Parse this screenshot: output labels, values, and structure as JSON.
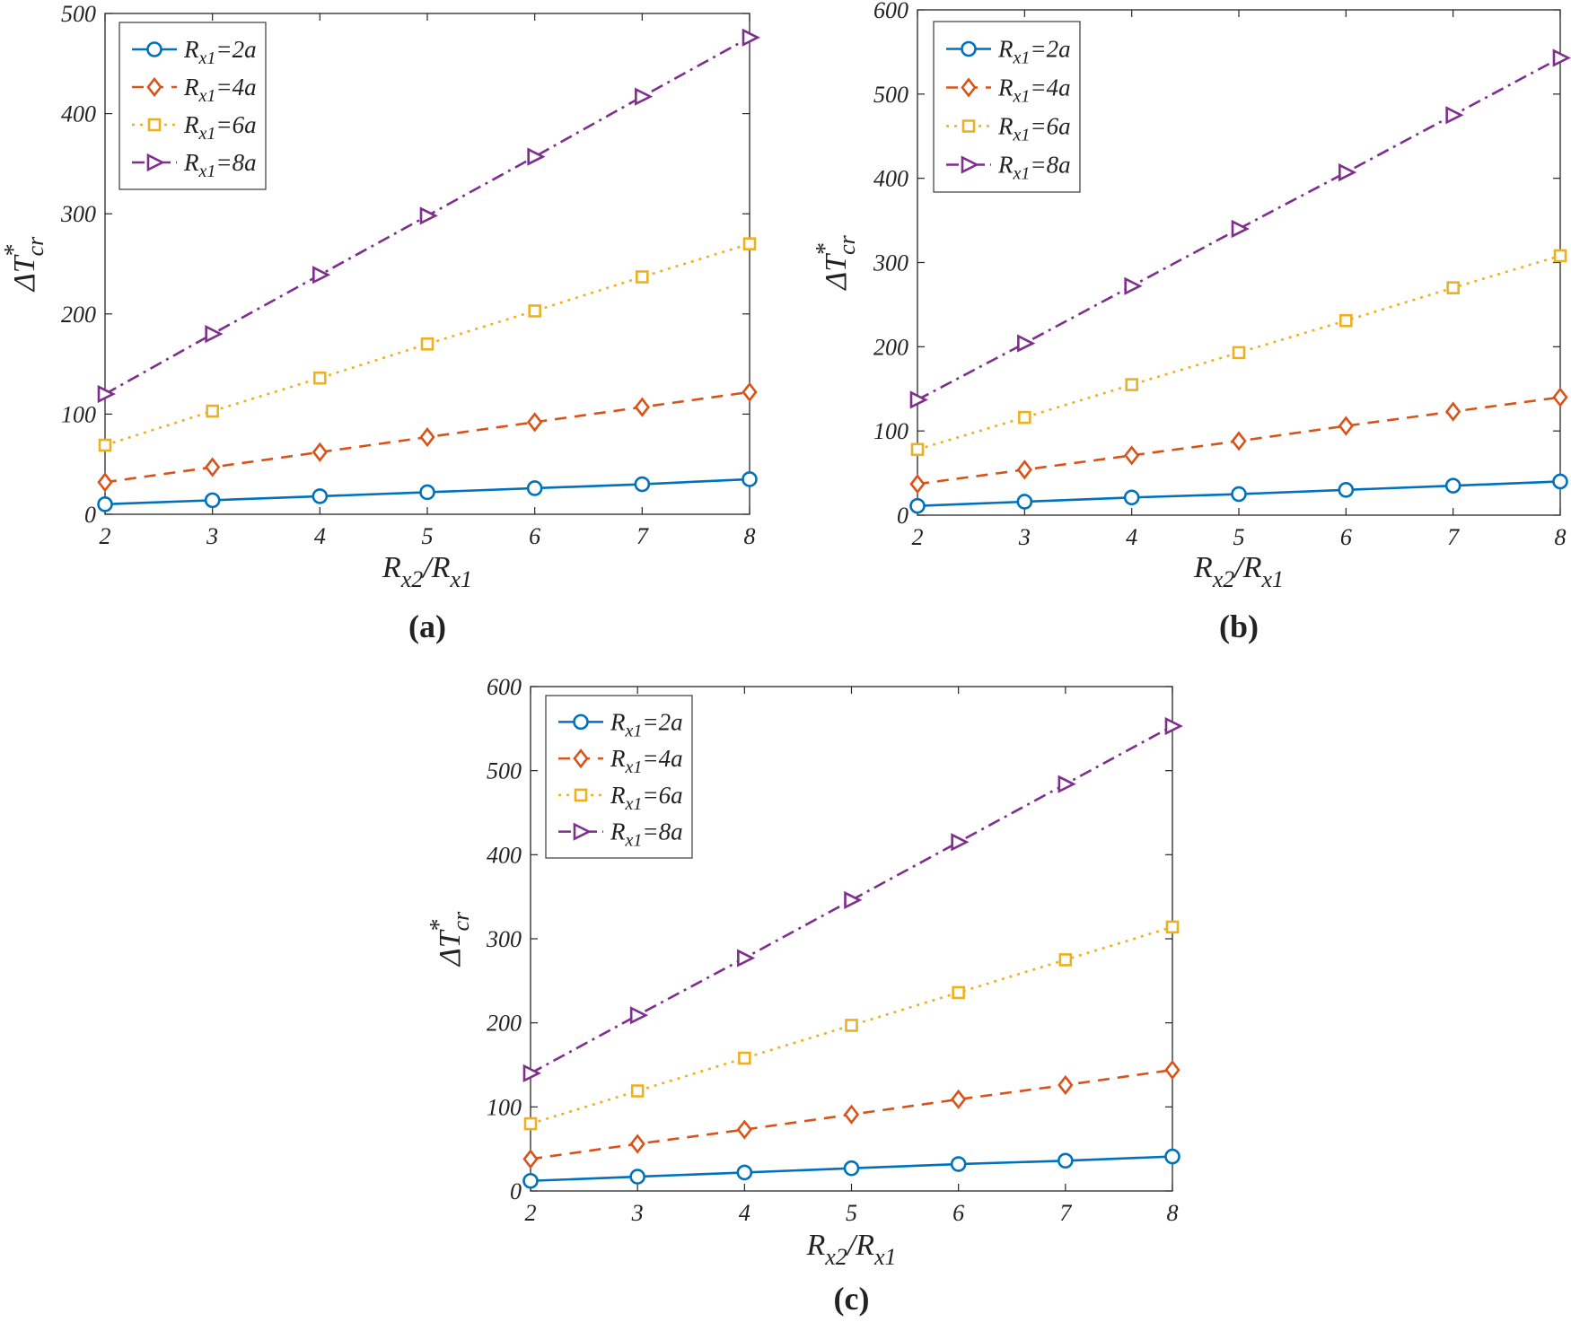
{
  "chart_data": [
    {
      "type": "line",
      "caption": "(a)",
      "x": [
        2,
        3,
        4,
        5,
        6,
        7,
        8
      ],
      "xlim": [
        2,
        8
      ],
      "ylim": [
        0,
        500
      ],
      "xticks": [
        2,
        3,
        4,
        5,
        6,
        7,
        8
      ],
      "yticks": [
        0,
        100,
        200,
        300,
        400,
        500
      ],
      "ylabel": {
        "main": "ΔT",
        "sup": "*",
        "sub": "cr"
      },
      "xlabel": {
        "n1": "R",
        "s1": "x2",
        "slash": "/",
        "n2": "R",
        "s2": "x1"
      },
      "grid": false,
      "legend_position": "top-left",
      "series": [
        {
          "legend": {
            "name": "R",
            "sub": "x1",
            "rest": "=2a"
          },
          "values": [
            10,
            14,
            18,
            22,
            26,
            30,
            35
          ]
        },
        {
          "legend": {
            "name": "R",
            "sub": "x1",
            "rest": "=4a"
          },
          "values": [
            32,
            47,
            62,
            77,
            92,
            107,
            122
          ]
        },
        {
          "legend": {
            "name": "R",
            "sub": "x1",
            "rest": "=6a"
          },
          "values": [
            69,
            103,
            136,
            170,
            203,
            237,
            270
          ]
        },
        {
          "legend": {
            "name": "R",
            "sub": "x1",
            "rest": "=8a"
          },
          "values": [
            120,
            180,
            239,
            298,
            357,
            417,
            476
          ]
        }
      ]
    },
    {
      "type": "line",
      "caption": "(b)",
      "x": [
        2,
        3,
        4,
        5,
        6,
        7,
        8
      ],
      "xlim": [
        2,
        8
      ],
      "ylim": [
        0,
        600
      ],
      "xticks": [
        2,
        3,
        4,
        5,
        6,
        7,
        8
      ],
      "yticks": [
        0,
        100,
        200,
        300,
        400,
        500,
        600
      ],
      "ylabel": {
        "main": "ΔT",
        "sup": "*",
        "sub": "cr"
      },
      "xlabel": {
        "n1": "R",
        "s1": "x2",
        "slash": "/",
        "n2": "R",
        "s2": "x1"
      },
      "grid": false,
      "legend_position": "top-left",
      "series": [
        {
          "legend": {
            "name": "R",
            "sub": "x1",
            "rest": "=2a"
          },
          "values": [
            11,
            16,
            21,
            25,
            30,
            35,
            40
          ]
        },
        {
          "legend": {
            "name": "R",
            "sub": "x1",
            "rest": "=4a"
          },
          "values": [
            37,
            54,
            71,
            88,
            106,
            123,
            140
          ]
        },
        {
          "legend": {
            "name": "R",
            "sub": "x1",
            "rest": "=6a"
          },
          "values": [
            78,
            116,
            155,
            193,
            231,
            270,
            308
          ]
        },
        {
          "legend": {
            "name": "R",
            "sub": "x1",
            "rest": "=8a"
          },
          "values": [
            137,
            204,
            272,
            340,
            407,
            475,
            543
          ]
        }
      ]
    },
    {
      "type": "line",
      "caption": "(c)",
      "x": [
        2,
        3,
        4,
        5,
        6,
        7,
        8
      ],
      "xlim": [
        2,
        8
      ],
      "ylim": [
        0,
        600
      ],
      "xticks": [
        2,
        3,
        4,
        5,
        6,
        7,
        8
      ],
      "yticks": [
        0,
        100,
        200,
        300,
        400,
        500,
        600
      ],
      "ylabel": {
        "main": "ΔT",
        "sup": "*",
        "sub": "cr"
      },
      "xlabel": {
        "n1": "R",
        "s1": "x2",
        "slash": "/",
        "n2": "R",
        "s2": "x1"
      },
      "grid": false,
      "legend_position": "top-left",
      "series": [
        {
          "legend": {
            "name": "R",
            "sub": "x1",
            "rest": "=2a"
          },
          "values": [
            12,
            17,
            22,
            27,
            32,
            36,
            41
          ]
        },
        {
          "legend": {
            "name": "R",
            "sub": "x1",
            "rest": "=4a"
          },
          "values": [
            38,
            56,
            73,
            91,
            109,
            126,
            144
          ]
        },
        {
          "legend": {
            "name": "R",
            "sub": "x1",
            "rest": "=6a"
          },
          "values": [
            80,
            119,
            158,
            197,
            236,
            275,
            314
          ]
        },
        {
          "legend": {
            "name": "R",
            "sub": "x1",
            "rest": "=8a"
          },
          "values": [
            140,
            209,
            277,
            346,
            415,
            484,
            553
          ]
        }
      ]
    }
  ],
  "series_styles": [
    {
      "color": "#0072BD",
      "dash": "",
      "marker": "circle-icon"
    },
    {
      "color": "#D95319",
      "dash": "13 9",
      "marker": "diamond-icon"
    },
    {
      "color": "#EDB120",
      "dash": "3 6",
      "marker": "square-icon"
    },
    {
      "color": "#7E2F8E",
      "dash": "14 6 3 6",
      "marker": "triangle-right-icon"
    }
  ]
}
